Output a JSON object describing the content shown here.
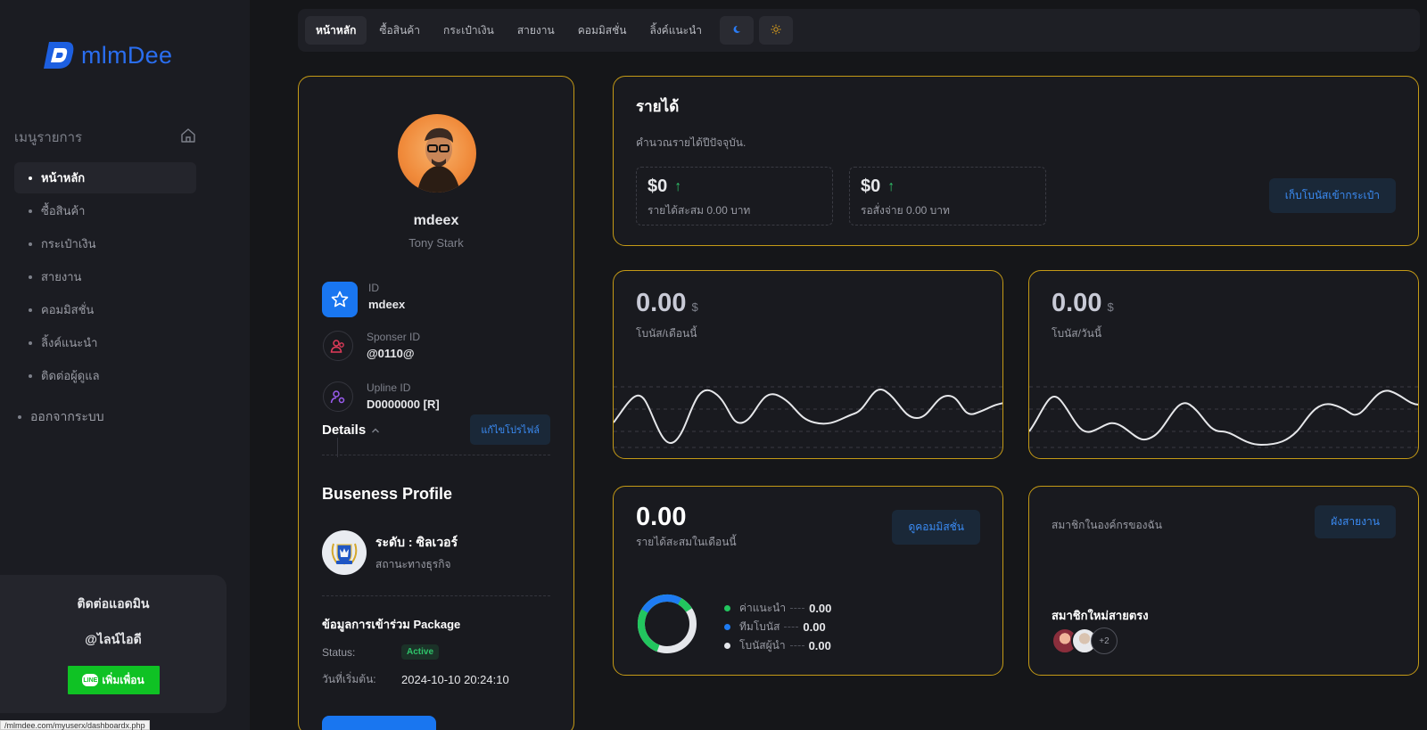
{
  "sidebar": {
    "logo_text": "mlmDee",
    "menu_header": "เมนูรายการ",
    "items": [
      {
        "label": "หน้าหลัก",
        "active": true
      },
      {
        "label": "ซื้อสินค้า"
      },
      {
        "label": "กระเป๋าเงิน"
      },
      {
        "label": "สายงาน"
      },
      {
        "label": "คอมมิสชั่น"
      },
      {
        "label": "ลิ้งค์แนะนำ"
      },
      {
        "label": "ติดต่อผู้ดูแล"
      }
    ],
    "logout": "ออกจากระบบ",
    "admin": {
      "title": "ติดต่อแอดมิน",
      "line_id": "@ไลน์ไอดี",
      "add_friend": "เพิ่มเพื่อน",
      "line_logo": "LINE"
    }
  },
  "status_url": "/mlmdee.com/myuserx/dashboardx.php",
  "topnav": {
    "tabs": [
      "หน้าหลัก",
      "ซื้อสินค้า",
      "กระเป๋าเงิน",
      "สายงาน",
      "คอมมิสชั่น",
      "ลิ้งค์แนะนำ"
    ],
    "icons": [
      "moon-icon",
      "sun-icon"
    ]
  },
  "profile": {
    "username": "mdeex",
    "fullname": "Tony Stark",
    "id_label": "ID",
    "id_value": "mdeex",
    "sponsor_label": "Sponser ID",
    "sponsor_value": "@0110@",
    "upline_label": "Upline ID",
    "upline_value": "D0000000 [R]",
    "details": "Details",
    "edit_button": "แก้ไขโปรไฟล์",
    "business_title": "Buseness Profile",
    "level": "ระดับ : ซิลเวอร์",
    "level_sub": "สถานะทางธุรกิจ",
    "package_title": "ข้อมูลการเข้าร่วม Package",
    "status_label": "Status:",
    "status_value": "Active",
    "start_label": "วันที่เริ่มต้น:",
    "start_value": "2024-10-10 20:24:10"
  },
  "income": {
    "title": "รายได้",
    "subtitle": "คำนวณรายได้ปีปัจจุบัน.",
    "boxes": [
      {
        "value": "$0",
        "label": "รายได้สะสม 0.00 บาท"
      },
      {
        "value": "$0",
        "label": "รอสั่งจ่าย 0.00 บาท"
      }
    ],
    "button": "เก็บโบนัสเข้ากระเป๋า"
  },
  "bonus_month": {
    "value": "0.00",
    "currency": "$",
    "label": "โบนัส/เดือนนี้"
  },
  "bonus_day": {
    "value": "0.00",
    "currency": "$",
    "label": "โบนัส/วันนี้"
  },
  "commission": {
    "value": "0.00",
    "label": "รายได้สะสมในเดือนนี้",
    "button": "ดูคอมมิสชั่น",
    "legend": [
      {
        "name": "ค่าแนะนำ",
        "value": "0.00",
        "color": "#22c55e"
      },
      {
        "name": "ทีมโบนัส",
        "value": "0.00",
        "color": "#1e7bf2"
      },
      {
        "name": "โบนัสผู้นำ",
        "value": "0.00",
        "color": "#e5e7eb"
      }
    ]
  },
  "members": {
    "label": "สมาชิกในองค์กรของฉัน",
    "button": "ผังสายงาน",
    "new_title": "สมาชิกใหม่สายตรง",
    "more": "+2"
  },
  "colors": {
    "accent": "#1976f0",
    "border": "#c49a16",
    "bg": "#151619"
  }
}
